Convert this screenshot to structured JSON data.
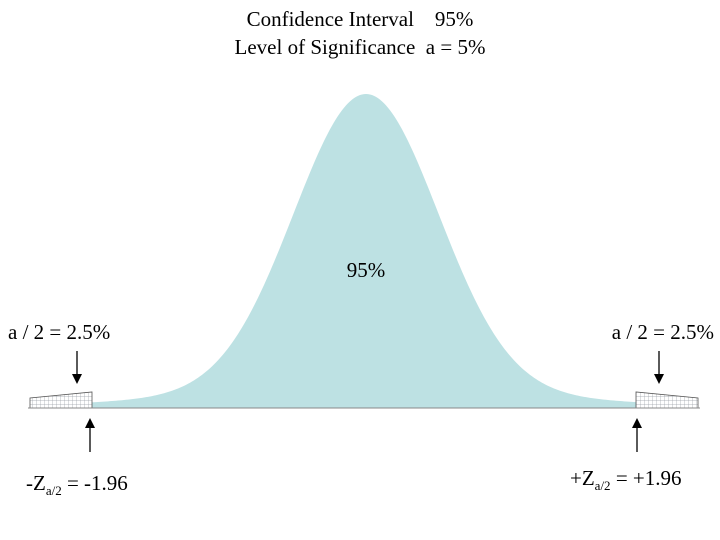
{
  "title": {
    "line1": "Confidence Interval    95%",
    "line2": "Level of Significance  a = 5%"
  },
  "diagram": {
    "center_label": "95%",
    "left_tail_label": "a / 2 = 2.5%",
    "right_tail_label": "a / 2 = 2.5%",
    "left_z": {
      "prefix": "-Z",
      "subscript": "a/2",
      "suffix": " = -1.96"
    },
    "right_z": {
      "prefix": "+Z",
      "subscript": "a/2",
      "suffix": " = +1.96"
    },
    "colors": {
      "curve_fill": "#bde1e3",
      "tail_fill": "#ffffff",
      "tail_hatch": "#9aa0a6",
      "axis": "#888888"
    }
  }
}
